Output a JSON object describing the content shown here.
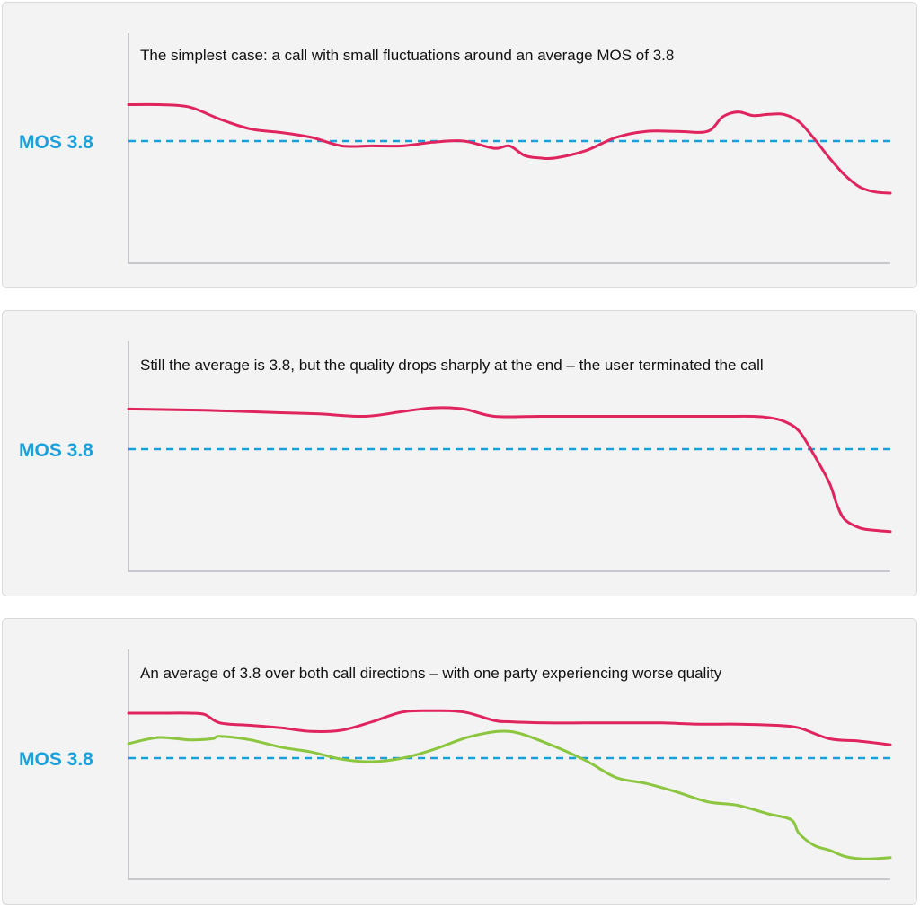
{
  "colors": {
    "panel_bg": "#f3f3f4",
    "axis": "#c8c8cc",
    "reference_line": "#1aa0db",
    "series_red": "#e0245e",
    "series_green": "#8cc63f"
  },
  "chart_data": [
    {
      "type": "line",
      "title": "The simplest case: a call with small fluctuations around an average MOS of 3.8",
      "reference_label": "MOS 3.8",
      "reference_value": 3.8,
      "xlim": [
        0,
        100
      ],
      "ylim": [
        2.9,
        4.4
      ],
      "grid": false,
      "series": [
        {
          "color": "#e0245e",
          "x": [
            0,
            4,
            8,
            12,
            16,
            20,
            24,
            28,
            32,
            36,
            40,
            44,
            48,
            50,
            52,
            54,
            56,
            60,
            64,
            68,
            72,
            76,
            78,
            80,
            82,
            84,
            86,
            88,
            90,
            92,
            94,
            96,
            98,
            100
          ],
          "y": [
            4.1,
            4.1,
            4.08,
            3.98,
            3.9,
            3.87,
            3.83,
            3.76,
            3.76,
            3.76,
            3.79,
            3.8,
            3.74,
            3.76,
            3.68,
            3.66,
            3.66,
            3.72,
            3.83,
            3.88,
            3.88,
            3.88,
            4.0,
            4.04,
            4.01,
            4.02,
            4.02,
            3.96,
            3.82,
            3.66,
            3.52,
            3.42,
            3.38,
            3.37
          ]
        }
      ]
    },
    {
      "type": "line",
      "title": "Still the average is 3.8, but the quality drops sharply at the end – the user terminated the call",
      "reference_label": "MOS 3.8",
      "reference_value": 3.8,
      "xlim": [
        0,
        100
      ],
      "ylim": [
        2.9,
        4.4
      ],
      "grid": false,
      "series": [
        {
          "color": "#e0245e",
          "x": [
            0,
            10,
            20,
            25,
            31,
            36,
            40,
            44,
            48,
            54,
            60,
            66,
            72,
            78,
            82,
            84,
            86,
            88,
            90,
            92,
            93,
            94,
            96,
            98,
            100
          ],
          "y": [
            4.13,
            4.12,
            4.1,
            4.09,
            4.07,
            4.11,
            4.14,
            4.13,
            4.07,
            4.07,
            4.07,
            4.07,
            4.07,
            4.07,
            4.07,
            4.06,
            4.03,
            3.95,
            3.75,
            3.52,
            3.34,
            3.22,
            3.15,
            3.13,
            3.12
          ]
        }
      ]
    },
    {
      "type": "line",
      "title": "An average of 3.8 over both call directions – with one party experiencing worse quality",
      "reference_label": "MOS 3.8",
      "reference_value": 3.8,
      "xlim": [
        0,
        100
      ],
      "ylim": [
        2.9,
        4.4
      ],
      "grid": false,
      "series": [
        {
          "color": "#e0245e",
          "x": [
            0,
            4,
            8,
            10,
            12,
            16,
            20,
            24,
            28,
            32,
            36,
            40,
            44,
            48,
            50,
            55,
            60,
            65,
            70,
            75,
            80,
            85,
            88,
            92,
            96,
            100
          ],
          "y": [
            4.17,
            4.17,
            4.17,
            4.16,
            4.09,
            4.07,
            4.05,
            4.02,
            4.03,
            4.1,
            4.18,
            4.19,
            4.18,
            4.11,
            4.1,
            4.09,
            4.09,
            4.09,
            4.09,
            4.08,
            4.08,
            4.07,
            4.05,
            3.96,
            3.94,
            3.91
          ]
        },
        {
          "color": "#8cc63f",
          "x": [
            0,
            4,
            8,
            11,
            12,
            16,
            20,
            24,
            28,
            32,
            36,
            40,
            45,
            50,
            55,
            60,
            64,
            68,
            72,
            76,
            80,
            84,
            87,
            88,
            90,
            92,
            94,
            96,
            98,
            100
          ],
          "y": [
            3.92,
            3.97,
            3.95,
            3.96,
            3.98,
            3.95,
            3.89,
            3.85,
            3.79,
            3.77,
            3.8,
            3.87,
            3.98,
            4.02,
            3.92,
            3.78,
            3.64,
            3.59,
            3.52,
            3.44,
            3.41,
            3.34,
            3.29,
            3.18,
            3.08,
            3.04,
            2.99,
            2.97,
            2.97,
            2.98
          ]
        }
      ]
    }
  ]
}
